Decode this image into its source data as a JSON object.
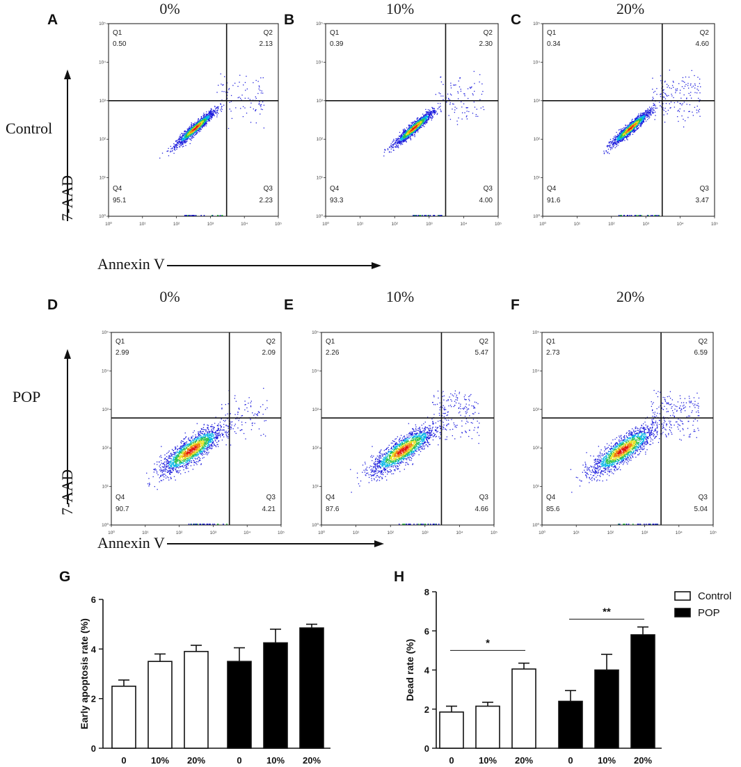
{
  "flow_axis": {
    "x_label": "Annexin V",
    "y_label": "7-AAD",
    "tick_labels": [
      "10⁰",
      "10¹",
      "10²",
      "10³",
      "10⁴",
      "10⁵"
    ],
    "quadrant_names": [
      "Q1",
      "Q2",
      "Q3",
      "Q4"
    ]
  },
  "row_labels": [
    "Control",
    "POP"
  ],
  "chart_data": [
    {
      "type": "scatter",
      "subtype": "flow-cytometry",
      "panel": "A",
      "group": "Control",
      "title": "0%",
      "xlabel": "Annexin V",
      "ylabel": "7-AAD",
      "x_range": [
        1,
        100000
      ],
      "y_range": [
        1,
        100000
      ],
      "gate": {
        "x": 3000,
        "y": 1000
      },
      "quadrants": {
        "Q1": "0.50",
        "Q2": "2.13",
        "Q3": "2.23",
        "Q4": "95.1"
      }
    },
    {
      "type": "scatter",
      "subtype": "flow-cytometry",
      "panel": "B",
      "group": "Control",
      "title": "10%",
      "xlabel": "Annexin V",
      "ylabel": "7-AAD",
      "x_range": [
        1,
        100000
      ],
      "y_range": [
        1,
        100000
      ],
      "gate": {
        "x": 3000,
        "y": 1000
      },
      "quadrants": {
        "Q1": "0.39",
        "Q2": "2.30",
        "Q3": "4.00",
        "Q4": "93.3"
      }
    },
    {
      "type": "scatter",
      "subtype": "flow-cytometry",
      "panel": "C",
      "group": "Control",
      "title": "20%",
      "xlabel": "Annexin V",
      "ylabel": "7-AAD",
      "x_range": [
        1,
        100000
      ],
      "y_range": [
        1,
        100000
      ],
      "gate": {
        "x": 3000,
        "y": 1000
      },
      "quadrants": {
        "Q1": "0.34",
        "Q2": "4.60",
        "Q3": "3.47",
        "Q4": "91.6"
      }
    },
    {
      "type": "scatter",
      "subtype": "flow-cytometry",
      "panel": "D",
      "group": "POP",
      "title": "0%",
      "xlabel": "Annexin V",
      "ylabel": "7-AAD",
      "x_range": [
        1,
        100000
      ],
      "y_range": [
        1,
        100000
      ],
      "gate": {
        "x": 3000,
        "y": 600
      },
      "quadrants": {
        "Q1": "2.99",
        "Q2": "2.09",
        "Q3": "4.21",
        "Q4": "90.7"
      }
    },
    {
      "type": "scatter",
      "subtype": "flow-cytometry",
      "panel": "E",
      "group": "POP",
      "title": "10%",
      "xlabel": "Annexin V",
      "ylabel": "7-AAD",
      "x_range": [
        1,
        100000
      ],
      "y_range": [
        1,
        100000
      ],
      "gate": {
        "x": 3000,
        "y": 600
      },
      "quadrants": {
        "Q1": "2.26",
        "Q2": "5.47",
        "Q3": "4.66",
        "Q4": "87.6"
      }
    },
    {
      "type": "scatter",
      "subtype": "flow-cytometry",
      "panel": "F",
      "group": "POP",
      "title": "20%",
      "xlabel": "Annexin V",
      "ylabel": "7-AAD",
      "x_range": [
        1,
        100000
      ],
      "y_range": [
        1,
        100000
      ],
      "gate": {
        "x": 3000,
        "y": 600
      },
      "quadrants": {
        "Q1": "2.73",
        "Q2": "6.59",
        "Q3": "5.04",
        "Q4": "85.6"
      }
    },
    {
      "type": "bar",
      "panel": "G",
      "title": "",
      "ylabel": "Early apoptosis rate (%)",
      "ylim": [
        0,
        6
      ],
      "yticks": [
        "0",
        "2",
        "4",
        "6"
      ],
      "categories": [
        "0",
        "10%",
        "20%"
      ],
      "series": [
        {
          "name": "Control",
          "values": [
            2.5,
            3.5,
            3.9
          ],
          "errors": [
            0.25,
            0.3,
            0.25
          ]
        },
        {
          "name": "POP",
          "values": [
            3.5,
            4.25,
            4.85
          ],
          "errors": [
            0.55,
            0.55,
            0.15
          ]
        }
      ],
      "significance": []
    },
    {
      "type": "bar",
      "panel": "H",
      "title": "",
      "ylabel": "Dead rate (%)",
      "ylim": [
        0,
        8
      ],
      "yticks": [
        "0",
        "2",
        "4",
        "6",
        "8"
      ],
      "categories": [
        "0",
        "10%",
        "20%"
      ],
      "series": [
        {
          "name": "Control",
          "values": [
            1.85,
            2.15,
            4.05
          ],
          "errors": [
            0.3,
            0.2,
            0.3
          ]
        },
        {
          "name": "POP",
          "values": [
            2.4,
            4.0,
            5.8
          ],
          "errors": [
            0.55,
            0.8,
            0.4
          ]
        }
      ],
      "significance": [
        {
          "series": "Control",
          "from": 0,
          "to": 2,
          "label": "*",
          "y": 5.0
        },
        {
          "series": "POP",
          "from": 0,
          "to": 2,
          "label": "**",
          "y": 6.6
        }
      ],
      "legend": {
        "position": "top-right",
        "entries": [
          "Control",
          "POP"
        ]
      }
    }
  ],
  "colors": {
    "ink": "#111111",
    "control_fill": "#ffffff",
    "pop_fill": "#000000",
    "density": [
      "#1a1adc",
      "#00b4e6",
      "#2ec04a",
      "#e8e020",
      "#f07a10",
      "#e01010"
    ]
  }
}
